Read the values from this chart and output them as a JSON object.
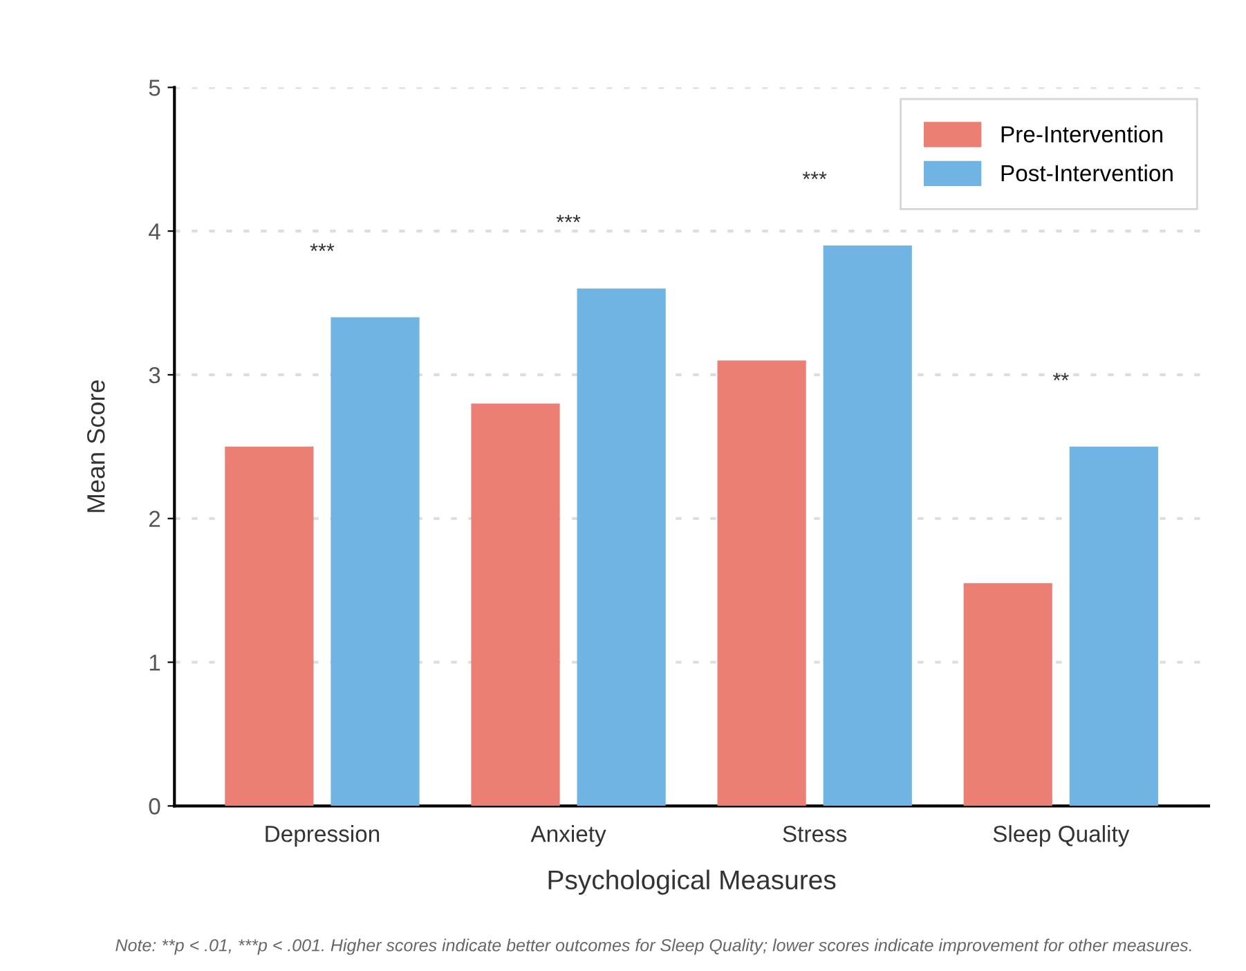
{
  "chart_data": {
    "type": "bar",
    "xlabel": "Psychological Measures",
    "ylabel": "Mean Score",
    "categories": [
      "Depression",
      "Anxiety",
      "Stress",
      "Sleep Quality"
    ],
    "series": [
      {
        "name": "Pre-Intervention",
        "color": "#ec7f73",
        "values": [
          2.5,
          2.8,
          3.1,
          1.55
        ]
      },
      {
        "name": "Post-Intervention",
        "color": "#6fb4e3",
        "values": [
          3.4,
          3.6,
          3.9,
          2.5
        ]
      }
    ],
    "ylim": [
      0,
      5
    ],
    "yticks": [
      0,
      1,
      2,
      3,
      4,
      5
    ],
    "grid": "y",
    "legend": "top right",
    "annotations": [
      "***",
      "***",
      "***",
      "**",
      "Note: **p < .01, ***p < .001. Higher scores indicate better outcomes for Sleep Quality; lower scores indicate improvement for other measures."
    ]
  }
}
